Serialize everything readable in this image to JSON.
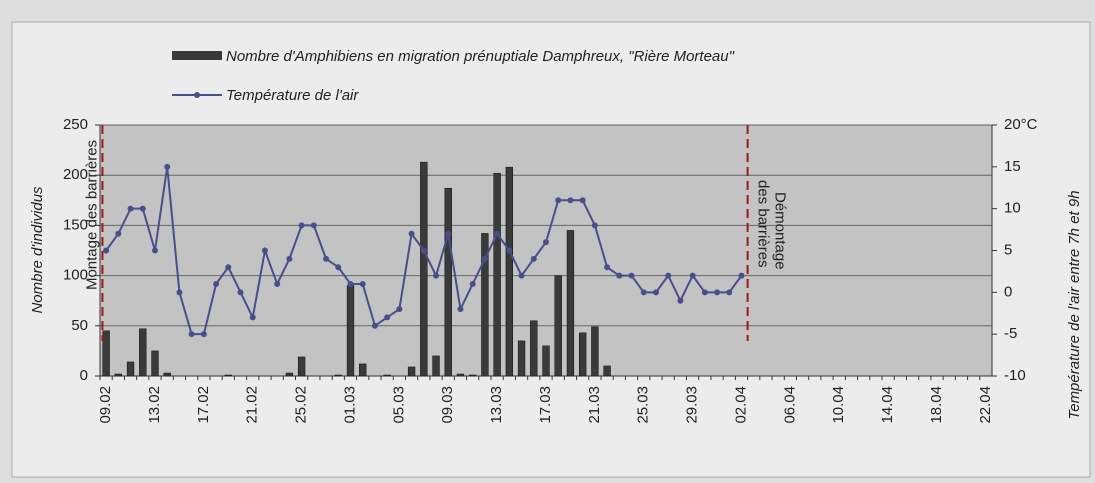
{
  "chart_data": {
    "type": "bar-line",
    "categories": [
      "09.02",
      null,
      null,
      null,
      "13.02",
      null,
      null,
      null,
      "17.02",
      null,
      null,
      null,
      "21.02",
      null,
      null,
      null,
      "25.02",
      null,
      null,
      null,
      "01.03",
      null,
      null,
      null,
      "05.03",
      null,
      null,
      null,
      "09.03",
      null,
      null,
      null,
      "13.03",
      null,
      null,
      null,
      "17.03",
      null,
      null,
      null,
      "21.03",
      null,
      null,
      null,
      "25.03",
      null,
      null,
      null,
      "29.03",
      null,
      null,
      null,
      "02.04",
      null,
      null,
      null,
      "06.04",
      null,
      null,
      null,
      "10.04",
      null,
      null,
      null,
      "14.04",
      null,
      null,
      null,
      "18.04",
      null,
      null,
      null,
      "22.04"
    ],
    "series": [
      {
        "name": "Nombre d'Amphibiens en migration prénuptiale Damphreux, \"Rière Morteau\"",
        "type": "bar",
        "axis": "y",
        "color": "#3a3a3a",
        "values": [
          45,
          2,
          14,
          47,
          25,
          3,
          0,
          0,
          0,
          0,
          1,
          0,
          0,
          0,
          0,
          3,
          19,
          0,
          0,
          1,
          90,
          12,
          0,
          1,
          0,
          9,
          213,
          20,
          187,
          2,
          1,
          142,
          202,
          208,
          35,
          55,
          30,
          100,
          145,
          43,
          49,
          10,
          0,
          0,
          0,
          0,
          0,
          0,
          0,
          0,
          0,
          0,
          0,
          0,
          0,
          0,
          0,
          0,
          0,
          0,
          0,
          0,
          0,
          0,
          0,
          0,
          0,
          0,
          0,
          0,
          0,
          0,
          0
        ]
      },
      {
        "name": "Température de l'air",
        "type": "line",
        "axis": "y2",
        "color": "#4a4f8c",
        "values": [
          5,
          7,
          10,
          10,
          5,
          15,
          0,
          -5,
          -5,
          1,
          3,
          0,
          -3,
          5,
          1,
          4,
          8,
          8,
          4,
          3,
          1,
          1,
          -4,
          -3,
          -2,
          7,
          5,
          2,
          7,
          -2,
          1,
          4,
          7,
          5,
          2,
          4,
          6,
          11,
          11,
          11,
          8,
          3,
          2,
          2,
          0,
          0,
          2,
          -1,
          2,
          0,
          0,
          0,
          2,
          null,
          null,
          null,
          null,
          null,
          null,
          null,
          null,
          null,
          null,
          null,
          null,
          null,
          null,
          null,
          null,
          null,
          null,
          null,
          null
        ]
      }
    ],
    "ylabel": "Nombre d'individus",
    "y2label": "Température de l'air entre 7h et 9h",
    "ylim": [
      0,
      250
    ],
    "yticks": [
      0,
      50,
      100,
      150,
      200,
      250
    ],
    "y2lim": [
      -10,
      20
    ],
    "y2ticks": [
      -10,
      -5,
      0,
      5,
      10,
      15,
      {
        "value": 20,
        "label": "20°C"
      }
    ],
    "annotations": [
      "Montage des barrières",
      "Démontage",
      "des barrières"
    ],
    "grid": true
  }
}
